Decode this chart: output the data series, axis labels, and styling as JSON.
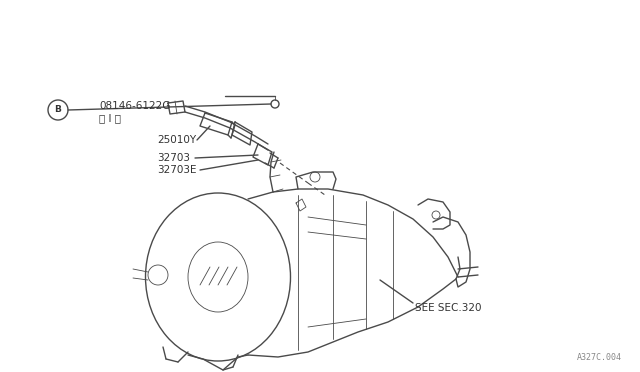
{
  "bg_color": "#ffffff",
  "line_color": "#4a4a4a",
  "text_color": "#333333",
  "watermark": "A327C.004",
  "label_B": "B",
  "label_part1": "08146-6122G",
  "label_part1_sub": "〈 I 〉",
  "label_part2": "25010Y",
  "label_part3": "32703",
  "label_part4": "32703E",
  "label_see": "SEE SEC.320",
  "font_size_labels": 7.5,
  "font_size_watermark": 6.0,
  "lw_main": 1.0,
  "lw_thin": 0.6,
  "lw_thick": 1.4
}
